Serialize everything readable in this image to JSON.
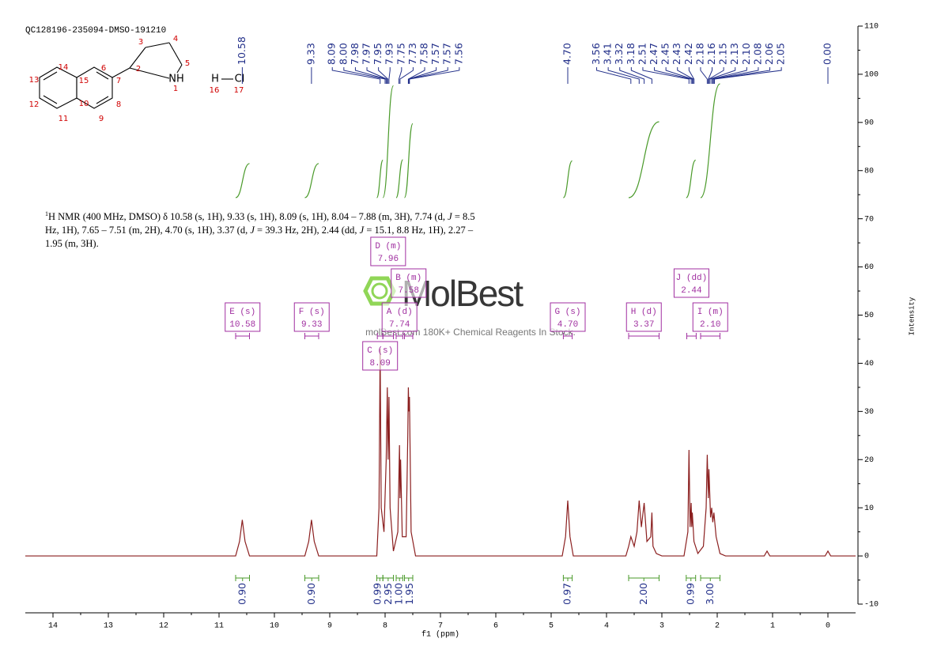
{
  "structure": {
    "atoms": [
      "14",
      "13",
      "12",
      "11",
      "10",
      "15",
      "6",
      "7",
      "8",
      "9",
      "2",
      "3",
      "4",
      "5",
      "1",
      "16",
      "17"
    ],
    "groups": [
      "NH",
      "H",
      "Cl"
    ]
  },
  "chart_data": {
    "type": "line",
    "title": "QC128196-235094-DMSO-191210",
    "x_label": "f1 (ppm)",
    "y_label": "Intensity",
    "xlim": [
      14.5,
      -0.5
    ],
    "xticks": [
      14,
      13,
      12,
      11,
      10,
      9,
      8,
      7,
      6,
      5,
      4,
      3,
      2,
      1,
      0
    ],
    "ylim": [
      -10,
      110
    ],
    "yticks": [
      -10,
      0,
      10,
      20,
      30,
      40,
      50,
      60,
      70,
      80,
      90,
      100,
      110
    ],
    "color": "#8b1f1f",
    "x": [
      14.5,
      10.7,
      10.63,
      10.58,
      10.53,
      10.45,
      9.45,
      9.38,
      9.33,
      9.28,
      9.2,
      8.15,
      8.11,
      8.09,
      8.07,
      8.02,
      7.98,
      7.96,
      7.945,
      7.93,
      7.91,
      7.85,
      7.77,
      7.74,
      7.73,
      7.72,
      7.69,
      7.62,
      7.59,
      7.58,
      7.57,
      7.56,
      7.53,
      7.45,
      4.8,
      4.74,
      4.7,
      4.66,
      4.6,
      3.65,
      3.6,
      3.56,
      3.5,
      3.45,
      3.41,
      3.37,
      3.32,
      3.27,
      3.2,
      3.18,
      3.16,
      3.1,
      3.0,
      2.6,
      2.53,
      2.51,
      2.49,
      2.47,
      2.46,
      2.45,
      2.42,
      2.35,
      2.25,
      2.2,
      2.18,
      2.16,
      2.15,
      2.12,
      2.1,
      2.08,
      2.06,
      2.02,
      1.95,
      1.85,
      1.15,
      1.1,
      1.05,
      0.05,
      0,
      -0.05,
      -0.5
    ],
    "values": [
      0,
      0,
      3,
      7.5,
      3,
      0,
      0,
      3,
      7.5,
      3,
      0,
      0,
      10,
      43,
      10,
      5,
      20,
      35,
      20,
      33,
      10,
      1,
      5,
      23,
      12,
      20,
      4,
      4,
      25,
      35,
      30,
      33,
      5,
      0,
      0,
      4,
      11.5,
      4,
      0,
      0,
      2,
      4,
      2,
      5,
      11.5,
      6,
      11,
      3,
      4,
      9,
      2,
      0.5,
      0,
      0,
      5,
      22,
      6,
      11,
      6,
      9,
      3,
      0.5,
      2,
      10,
      21,
      12,
      18,
      8,
      10,
      7,
      9,
      4,
      0.5,
      0,
      0,
      1,
      0,
      0,
      1,
      0,
      0
    ],
    "peak_labels": [
      "10.58",
      "9.33",
      "8.09",
      "8.00",
      "7.98",
      "7.97",
      "7.95",
      "7.93",
      "7.75",
      "7.73",
      "7.58",
      "7.57",
      "7.57",
      "7.56",
      "4.70",
      "3.56",
      "3.41",
      "3.32",
      "3.18",
      "2.51",
      "2.47",
      "2.45",
      "2.43",
      "2.42",
      "2.18",
      "2.16",
      "2.15",
      "2.13",
      "2.10",
      "2.08",
      "2.06",
      "2.05",
      "0.00"
    ],
    "integrals": {
      "ranges": [
        [
          10.7,
          10.45
        ],
        [
          9.45,
          9.2
        ],
        [
          8.15,
          8.04
        ],
        [
          8.04,
          7.85
        ],
        [
          7.8,
          7.68
        ],
        [
          7.65,
          7.5
        ],
        [
          4.78,
          4.62
        ],
        [
          3.6,
          3.05
        ],
        [
          2.56,
          2.39
        ],
        [
          2.3,
          1.95
        ]
      ],
      "values": [
        0.9,
        0.9,
        0.99,
        2.95,
        1,
        1.95,
        0.97,
        2,
        0.99,
        3
      ],
      "value_labels": [
        "0.90",
        "0.90",
        "0.99",
        "2.95",
        "1.00",
        "1.95",
        "0.97",
        "2.00",
        "0.99",
        "3.00"
      ]
    },
    "multiplets": [
      {
        "label": "E (s)",
        "shift": "10.58",
        "range": [
          10.7,
          10.45
        ]
      },
      {
        "label": "F (s)",
        "shift": "9.33",
        "range": [
          9.45,
          9.2
        ]
      },
      {
        "label": "D (m)",
        "shift": "7.96",
        "range": [
          8.04,
          7.85
        ]
      },
      {
        "label": "B (m)",
        "shift": "7.58",
        "range": [
          7.65,
          7.5
        ]
      },
      {
        "label": "A (d)",
        "shift": "7.74",
        "range": [
          7.8,
          7.68
        ]
      },
      {
        "label": "C (s)",
        "shift": "8.09",
        "range": [
          8.14,
          8.04
        ]
      },
      {
        "label": "G (s)",
        "shift": "4.70",
        "range": [
          4.78,
          4.62
        ]
      },
      {
        "label": "H (d)",
        "shift": "3.37",
        "range": [
          3.6,
          3.05
        ]
      },
      {
        "label": "J (dd)",
        "shift": "2.44",
        "range": [
          2.55,
          2.38
        ]
      },
      {
        "label": "I (m)",
        "shift": "2.10",
        "range": [
          2.3,
          1.95
        ]
      }
    ],
    "description": {
      "sup": "1",
      "parts": [
        "H NMR (400 MHz, DMSO) δ 10.58 (s, 1H), 9.33 (s, 1H), 8.09 (s, 1H), 8.04 – 7.88 (m, 3H), 7.74 (d, ",
        "J",
        " = 8.5 Hz, 1H), 7.65 – 7.51 (m, 2H), 4.70 (s, 1H), 3.37 (d, ",
        "J",
        " = 39.3 Hz, 2H), 2.44 (dd, ",
        "J",
        " = 15.1, 8.8 Hz, 1H), 2.27 – 1.95 (m, 3H)."
      ]
    },
    "watermark": {
      "brand": "MolBest",
      "tagline": "molBest.com 180K+ Chemical Reagents In Stock."
    }
  }
}
